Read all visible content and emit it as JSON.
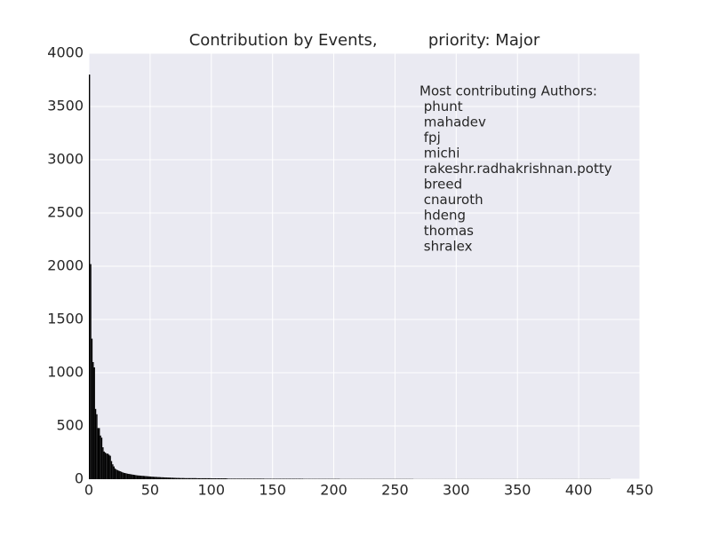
{
  "chart_data": {
    "type": "bar",
    "title": "Contribution by Events,          priority: Major",
    "annotation": [
      "Most contributing Authors:",
      " phunt",
      " mahadev",
      " fpj",
      " michi",
      " rakeshr.radhakrishnan.potty",
      " breed",
      " cnauroth",
      " hdeng",
      " thomas",
      " shralex"
    ],
    "color": "#000000",
    "background": "#eaeaf2",
    "grid": true,
    "xlim": [
      0,
      450
    ],
    "xticks": [
      0,
      50,
      100,
      150,
      200,
      250,
      300,
      350,
      400,
      450
    ],
    "ylim": [
      0,
      4000
    ],
    "yticks": [
      0,
      500,
      1000,
      1500,
      2000,
      2500,
      3000,
      3500,
      4000
    ],
    "values": [
      3800,
      2020,
      1320,
      1100,
      1050,
      660,
      610,
      480,
      480,
      410,
      390,
      300,
      260,
      250,
      240,
      240,
      230,
      220,
      170,
      140,
      120,
      100,
      90,
      85,
      80,
      75,
      70,
      65,
      60,
      58,
      55,
      52,
      50,
      48,
      46,
      44,
      42,
      40,
      38,
      36,
      35,
      34,
      33,
      32,
      31,
      30,
      29,
      28,
      27,
      26,
      25,
      24,
      23,
      22,
      22,
      21,
      20,
      20,
      19,
      18,
      18,
      17,
      17,
      16,
      16,
      15,
      15,
      14,
      14,
      13,
      13,
      12,
      12,
      12,
      11,
      11,
      11,
      11,
      10,
      10,
      10,
      10,
      10,
      10,
      10,
      10,
      10,
      10,
      9,
      9,
      9,
      9,
      9,
      9,
      9,
      9,
      9,
      9,
      9,
      9,
      8,
      8,
      8,
      8,
      8,
      8,
      8,
      8,
      8,
      8,
      8,
      8,
      8,
      5,
      5,
      5,
      5,
      5,
      5,
      5,
      5,
      5,
      5,
      5,
      5,
      5,
      5,
      5,
      5,
      5,
      5,
      5,
      5,
      5,
      5,
      5,
      5,
      5,
      5,
      5,
      5,
      5,
      5,
      4,
      4,
      4,
      4,
      4,
      4,
      4,
      4,
      4,
      4,
      4,
      4,
      4,
      4,
      4,
      4,
      4,
      4,
      4,
      4,
      4,
      4,
      4,
      4,
      4,
      4,
      4,
      4,
      4,
      4,
      4,
      4,
      3,
      3,
      3,
      3,
      3,
      3,
      3,
      3,
      3,
      3,
      3,
      3,
      3,
      3,
      3,
      3,
      3,
      3,
      3,
      3,
      3,
      3,
      3,
      3,
      3,
      3,
      3,
      3,
      3,
      3,
      2,
      2,
      2,
      2,
      2,
      2,
      2,
      2,
      2,
      2,
      2,
      2,
      2,
      2,
      2,
      2,
      2,
      2,
      2,
      2,
      2,
      2,
      2,
      2,
      2,
      2,
      2,
      2,
      2,
      2,
      2,
      2,
      2,
      2,
      2,
      2,
      2,
      2,
      2,
      2,
      2,
      2,
      2,
      2,
      2,
      2,
      2,
      2,
      2,
      2,
      2,
      2,
      2,
      2,
      2,
      2,
      2,
      2,
      2,
      2,
      1,
      1,
      1,
      1,
      1,
      1,
      1,
      1,
      1,
      1,
      1,
      1,
      1,
      1,
      1,
      1,
      1,
      1,
      1,
      1,
      1,
      1,
      1,
      1,
      1,
      1,
      1,
      1,
      1,
      1,
      1,
      1,
      1,
      1,
      1,
      1,
      1,
      1,
      1,
      1,
      1,
      1,
      1,
      1,
      1,
      1,
      1,
      1,
      1,
      1,
      1,
      1,
      1,
      1,
      1,
      1,
      1,
      1,
      1,
      1,
      1,
      1,
      1,
      1,
      1,
      1,
      1,
      1,
      1,
      1,
      1,
      1,
      1,
      1,
      1,
      1,
      1,
      1,
      1,
      1,
      1,
      1,
      1,
      1,
      1,
      1,
      1,
      1,
      1,
      1,
      1,
      1,
      1,
      1,
      1,
      1,
      1,
      1,
      1,
      1,
      1,
      1,
      1,
      1,
      1,
      1,
      1,
      1,
      1,
      1,
      1,
      1,
      1,
      1,
      1,
      1,
      1,
      1,
      1,
      1,
      1,
      1,
      1,
      1,
      1,
      1,
      1,
      1,
      1,
      1,
      1,
      1,
      1,
      1,
      1,
      1,
      1,
      1,
      1,
      1,
      1,
      1,
      1,
      1,
      1,
      1,
      1,
      1,
      1,
      1,
      1,
      1,
      1,
      1,
      1,
      1,
      1,
      1,
      1,
      1,
      1
    ]
  }
}
